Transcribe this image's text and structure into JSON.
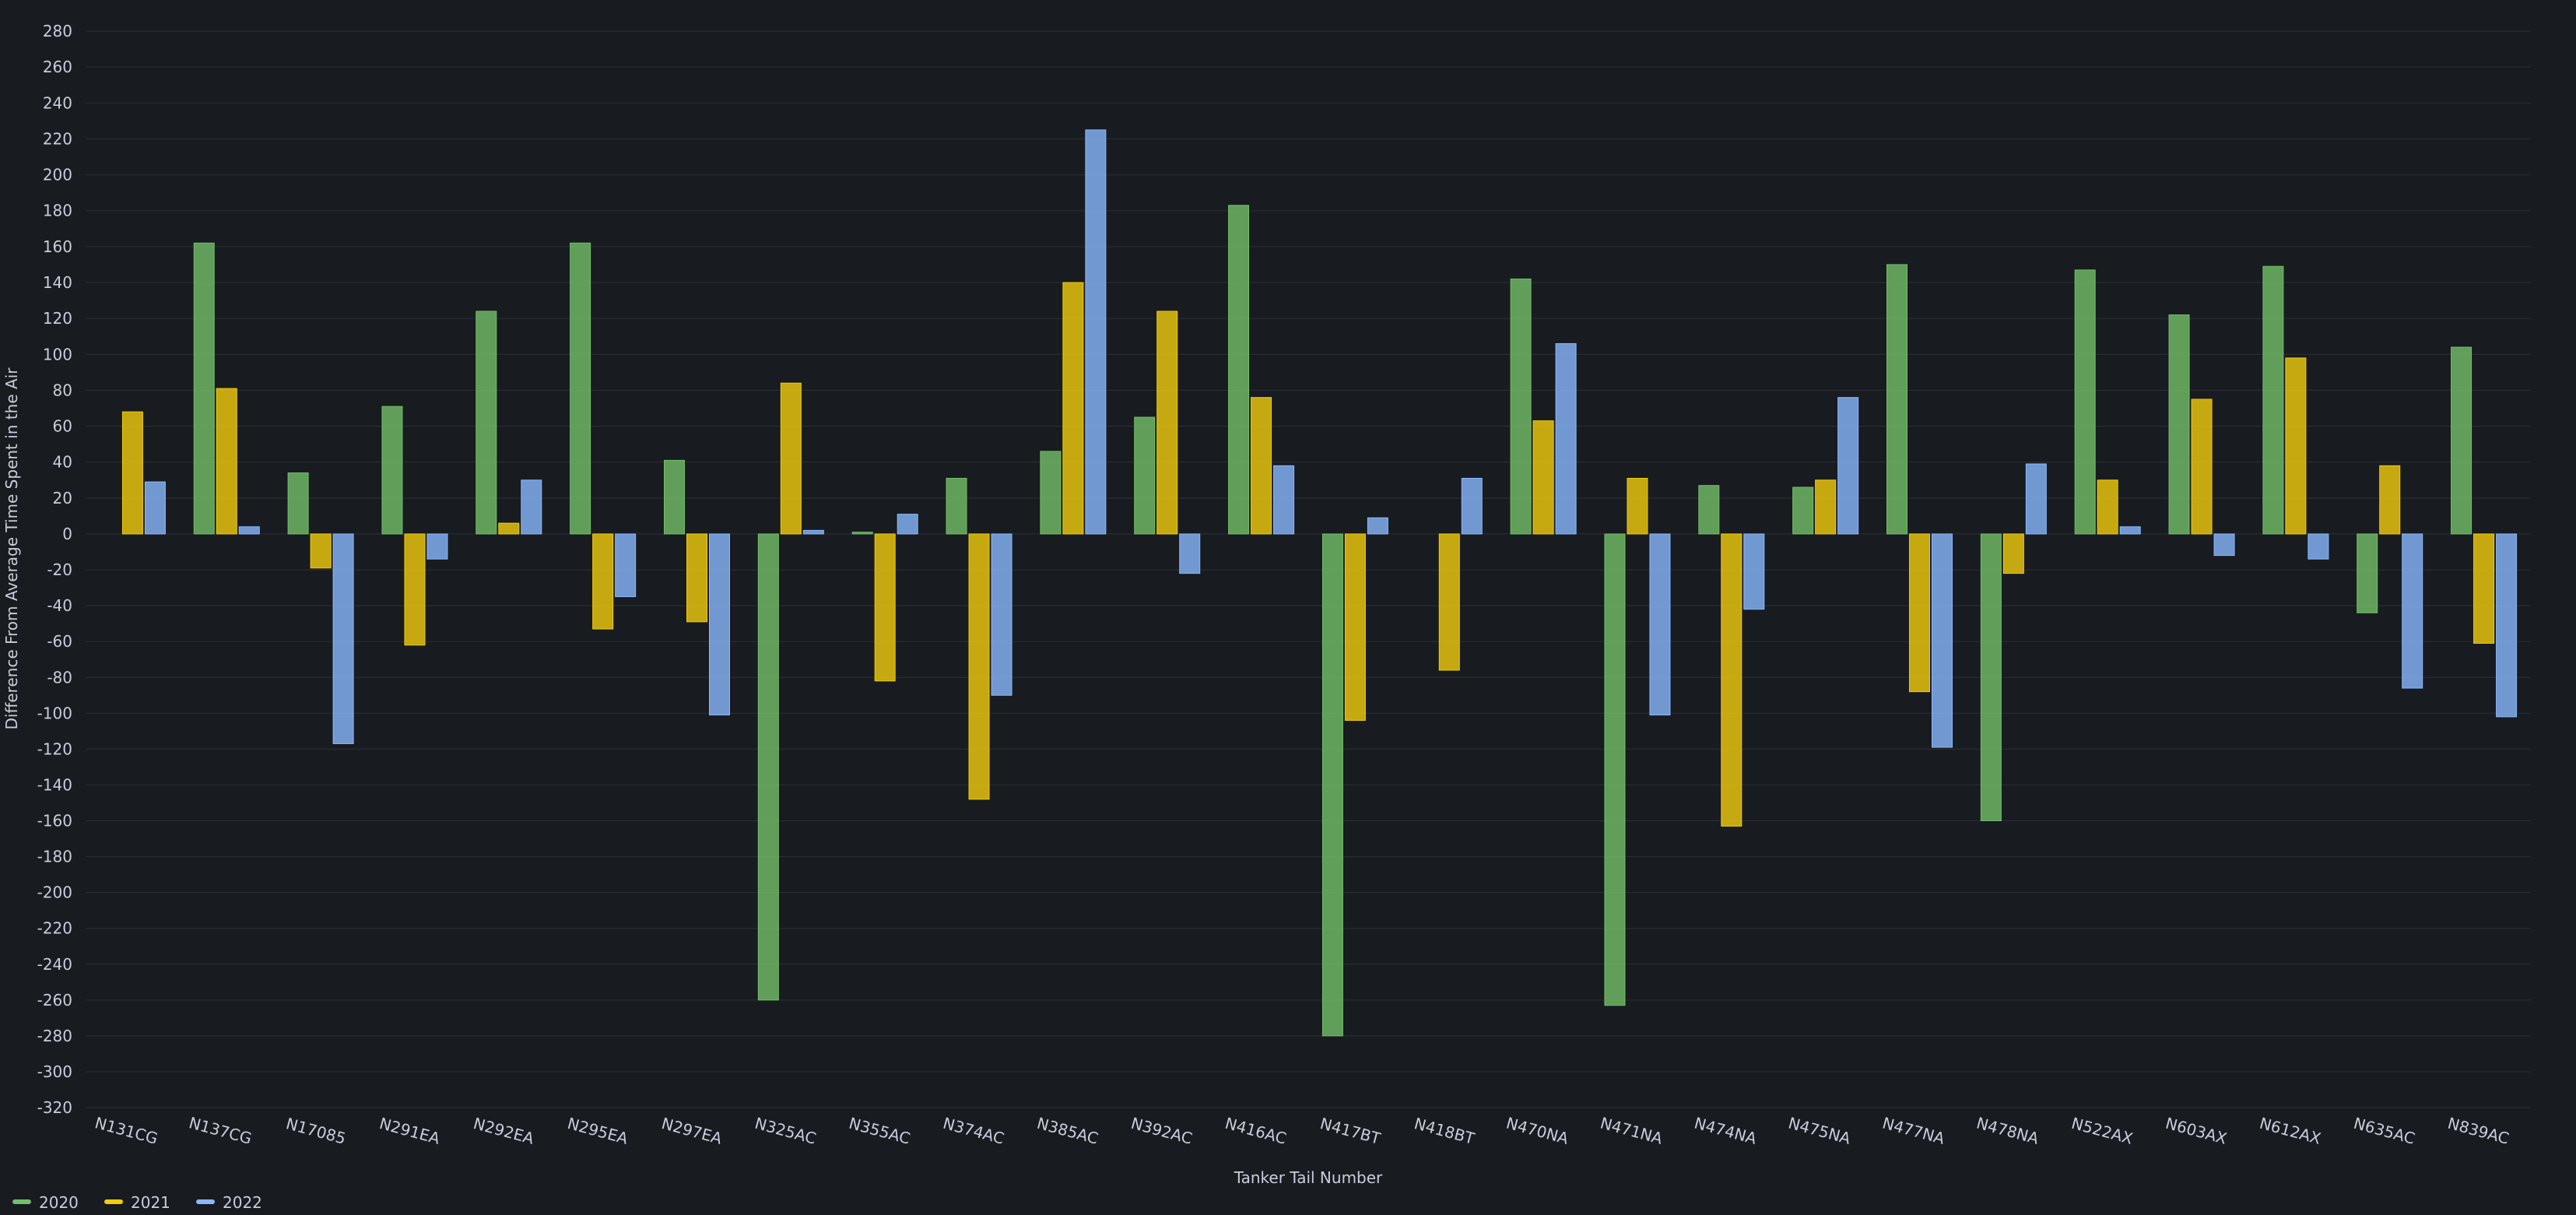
{
  "chart_data": {
    "type": "bar",
    "xlabel": "Tanker Tail Number",
    "ylabel": "Difference From Average Time Spent in the Air",
    "ylim": [
      -320,
      280
    ],
    "yticks": [
      280,
      260,
      240,
      220,
      200,
      180,
      160,
      140,
      120,
      100,
      80,
      60,
      40,
      20,
      0,
      -20,
      -40,
      -60,
      -80,
      -100,
      -120,
      -140,
      -160,
      -180,
      -200,
      -220,
      -240,
      -260,
      -280,
      -300,
      -320
    ],
    "grid": true,
    "legend_position": "bottom-left",
    "categories": [
      "N131CG",
      "N137CG",
      "N17085",
      "N291EA",
      "N292EA",
      "N295EA",
      "N297EA",
      "N325AC",
      "N355AC",
      "N374AC",
      "N385AC",
      "N392AC",
      "N416AC",
      "N417BT",
      "N418BT",
      "N470NA",
      "N471NA",
      "N474NA",
      "N475NA",
      "N477NA",
      "N478NA",
      "N522AX",
      "N603AX",
      "N612AX",
      "N635AC",
      "N839AC"
    ],
    "series": [
      {
        "name": "2020",
        "color": "#73bf69",
        "values": [
          null,
          162,
          34,
          71,
          124,
          162,
          41,
          -260,
          1,
          31,
          46,
          65,
          183,
          -280,
          null,
          142,
          -263,
          27,
          26,
          150,
          -160,
          147,
          122,
          149,
          -44,
          104
        ]
      },
      {
        "name": "2021",
        "color": "#f2cc0c",
        "values": [
          68,
          81,
          -19,
          -62,
          6,
          -53,
          -49,
          84,
          -82,
          -148,
          140,
          124,
          76,
          -104,
          -76,
          63,
          31,
          -163,
          30,
          -88,
          -22,
          30,
          75,
          98,
          38,
          -61
        ]
      },
      {
        "name": "2022",
        "color": "#8ab8ff",
        "values": [
          29,
          4,
          -117,
          -14,
          30,
          -35,
          -101,
          2,
          11,
          -90,
          225,
          -22,
          38,
          9,
          31,
          106,
          -101,
          -42,
          76,
          -119,
          39,
          4,
          -12,
          -14,
          -86,
          -102
        ]
      }
    ]
  }
}
